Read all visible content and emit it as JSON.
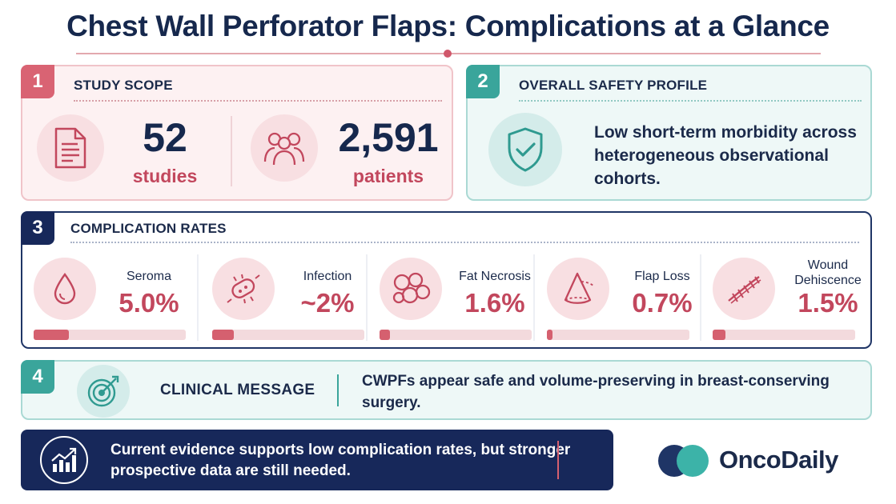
{
  "title": "Chest Wall Perforator Flaps: Complications at a Glance",
  "colors": {
    "navy": "#17285a",
    "rose": "#d5606f",
    "teal": "#3aa59b",
    "rose_text": "#c2475d"
  },
  "panel1": {
    "number": "1",
    "heading": "STUDY SCOPE",
    "stats": [
      {
        "icon": "document-icon",
        "value": "52",
        "label": "studies"
      },
      {
        "icon": "people-icon",
        "value": "2,591",
        "label": "patients"
      }
    ]
  },
  "panel2": {
    "number": "2",
    "heading": "OVERALL SAFETY PROFILE",
    "icon": "shield-check-icon",
    "text": "Low short-term morbidity across heterogeneous observational cohorts."
  },
  "panel3": {
    "number": "3",
    "heading": "COMPLICATION RATES",
    "items": [
      {
        "icon": "droplet-icon",
        "name": "Seroma",
        "value": "5.0%",
        "fraction": 0.23
      },
      {
        "icon": "bacteria-icon",
        "name": "Infection",
        "value": "~2%",
        "fraction": 0.14
      },
      {
        "icon": "fat-cells-icon",
        "name": "Fat Necrosis",
        "value": "1.6%",
        "fraction": 0.07
      },
      {
        "icon": "flap-cone-icon",
        "name": "Flap Loss",
        "value": "0.7%",
        "fraction": 0.04
      },
      {
        "icon": "suture-icon",
        "name": "Wound Dehiscence",
        "value": "1.5%",
        "fraction": 0.09
      }
    ]
  },
  "panel4": {
    "number": "4",
    "icon": "target-icon",
    "heading": "CLINICAL MESSAGE",
    "text": "CWPFs appear safe and volume-preserving in breast-conserving surgery."
  },
  "banner": {
    "icon": "trend-chart-icon",
    "text": "Current evidence supports low complication rates, but stronger prospective data are still needed."
  },
  "logo": {
    "text": "OncoDaily"
  }
}
